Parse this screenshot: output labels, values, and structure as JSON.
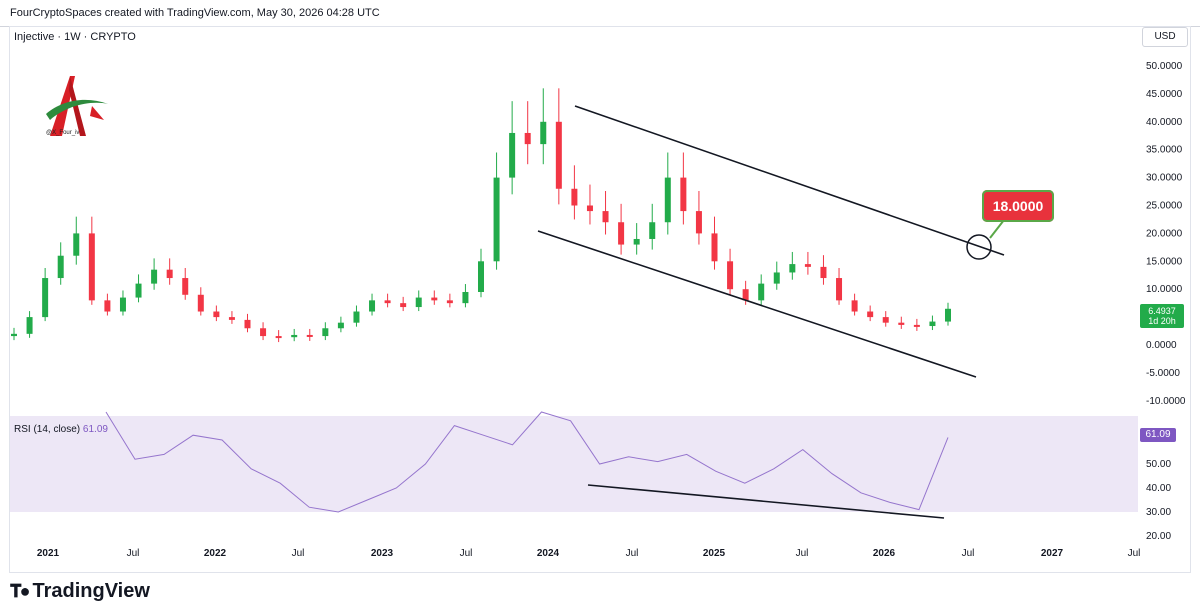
{
  "header": {
    "text": "FourCryptoSpaces created with TradingView.com, May 30, 2026 04:28 UTC"
  },
  "symbol": {
    "text": "Injective · 1W · CRYPTO"
  },
  "currency": "USD",
  "logo": {
    "caption": "@X_Four_iv"
  },
  "callout": {
    "text": "18.0000"
  },
  "price_label": {
    "line1": "6.4937",
    "line2": "1d 20h"
  },
  "rsi": {
    "label": "RSI (14, close)",
    "value": "61.09"
  },
  "footer": {
    "brand": "TradingView",
    "icon": "tradingview-logo-icon"
  },
  "colors": {
    "up": "#22ab4a",
    "down": "#f23645",
    "rsi_line": "#9575cd",
    "rsi_band": "#ede7f6",
    "callout": "#e8323c"
  },
  "chart_data": [
    {
      "type": "candlestick",
      "title": "",
      "x_tick_labels": [
        "2021",
        "Jul",
        "2022",
        "Jul",
        "2023",
        "Jul",
        "2024",
        "Jul",
        "2025",
        "Jul",
        "2026",
        "Jul",
        "2027",
        "Jul"
      ],
      "y_tick_labels": [
        "50.0000",
        "45.0000",
        "40.0000",
        "35.0000",
        "30.0000",
        "25.0000",
        "20.0000",
        "15.0000",
        "10.0000",
        "5.0000",
        "0.0000",
        "-5.0000",
        "-10.0000"
      ],
      "ylim": [
        -10,
        52
      ],
      "series": [
        {
          "values": [
            [
              "2021-01",
              2.0
            ],
            [
              "2021-02",
              5.0
            ],
            [
              "2021-03",
              12.0
            ],
            [
              "2021-04",
              16.0
            ],
            [
              "2021-05",
              20.0
            ],
            [
              "2021-06",
              8.0
            ],
            [
              "2021-07",
              6.0
            ],
            [
              "2021-08",
              8.5
            ],
            [
              "2021-09",
              11.0
            ],
            [
              "2021-10",
              13.5
            ],
            [
              "2021-11",
              12.0
            ],
            [
              "2021-12",
              9.0
            ],
            [
              "2022-01",
              6.0
            ],
            [
              "2022-02",
              5.0
            ],
            [
              "2022-03",
              4.5
            ],
            [
              "2022-04",
              3.0
            ],
            [
              "2022-05",
              1.6
            ],
            [
              "2022-07",
              1.4
            ],
            [
              "2022-10",
              1.8
            ],
            [
              "2022-12",
              1.6
            ],
            [
              "2023-01",
              3.0
            ],
            [
              "2023-02",
              4.0
            ],
            [
              "2023-03",
              6.0
            ],
            [
              "2023-04",
              8.0
            ],
            [
              "2023-05",
              7.5
            ],
            [
              "2023-06",
              6.8
            ],
            [
              "2023-07",
              8.5
            ],
            [
              "2023-08",
              8.0
            ],
            [
              "2023-09",
              7.5
            ],
            [
              "2023-10",
              9.5
            ],
            [
              "2023-11",
              15.0
            ],
            [
              "2023-12",
              30.0
            ],
            [
              "2024-01",
              38.0
            ],
            [
              "2024-02",
              36.0
            ],
            [
              "2024-03",
              40.0
            ],
            [
              "2024-04",
              28.0
            ],
            [
              "2024-05",
              25.0
            ],
            [
              "2024-06",
              24.0
            ],
            [
              "2024-07",
              22.0
            ],
            [
              "2024-08",
              18.0
            ],
            [
              "2024-09",
              19.0
            ],
            [
              "2024-10",
              22.0
            ],
            [
              "2024-11",
              30.0
            ],
            [
              "2024-12",
              24.0
            ],
            [
              "2025-01",
              20.0
            ],
            [
              "2025-02",
              15.0
            ],
            [
              "2025-03",
              10.0
            ],
            [
              "2025-04",
              8.0
            ],
            [
              "2025-05",
              11.0
            ],
            [
              "2025-06",
              13.0
            ],
            [
              "2025-07",
              14.5
            ],
            [
              "2025-08",
              14.0
            ],
            [
              "2025-09",
              12.0
            ],
            [
              "2025-10",
              8.0
            ],
            [
              "2025-11",
              6.0
            ],
            [
              "2025-12",
              5.0
            ],
            [
              "2026-01",
              4.0
            ],
            [
              "2026-02",
              3.6
            ],
            [
              "2026-03",
              3.4
            ],
            [
              "2026-04",
              4.2
            ],
            [
              "2026-05",
              6.49
            ]
          ]
        }
      ],
      "annotations": [
        "descending channel upper trendline",
        "descending channel lower trendline",
        "circle target marker"
      ]
    },
    {
      "type": "line",
      "title": "RSI (14, close)",
      "y_tick_labels": [
        "61.09",
        "50.00",
        "40.00",
        "30.00",
        "20.00"
      ],
      "ylim": [
        20,
        70
      ],
      "band": [
        30,
        70
      ],
      "series": [
        {
          "name": "RSI",
          "values": [
            [
              "2021-05",
              78
            ],
            [
              "2021-07",
              52
            ],
            [
              "2021-09",
              54
            ],
            [
              "2021-11",
              62
            ],
            [
              "2022-01",
              60
            ],
            [
              "2022-03",
              48
            ],
            [
              "2022-05",
              42
            ],
            [
              "2022-07",
              32
            ],
            [
              "2022-09",
              30
            ],
            [
              "2022-11",
              35
            ],
            [
              "2023-01",
              40
            ],
            [
              "2023-03",
              50
            ],
            [
              "2023-05",
              66
            ],
            [
              "2023-07",
              62
            ],
            [
              "2023-09",
              58
            ],
            [
              "2023-11",
              74
            ],
            [
              "2024-03",
              68
            ],
            [
              "2024-05",
              50
            ],
            [
              "2024-07",
              53
            ],
            [
              "2024-09",
              51
            ],
            [
              "2024-11",
              54
            ],
            [
              "2025-01",
              47
            ],
            [
              "2025-03",
              42
            ],
            [
              "2025-05",
              48
            ],
            [
              "2025-07",
              56
            ],
            [
              "2025-09",
              46
            ],
            [
              "2025-11",
              38
            ],
            [
              "2026-01",
              34
            ],
            [
              "2026-03",
              31
            ],
            [
              "2026-05",
              61.09
            ]
          ]
        }
      ],
      "annotations": [
        "descending trendline"
      ]
    }
  ]
}
